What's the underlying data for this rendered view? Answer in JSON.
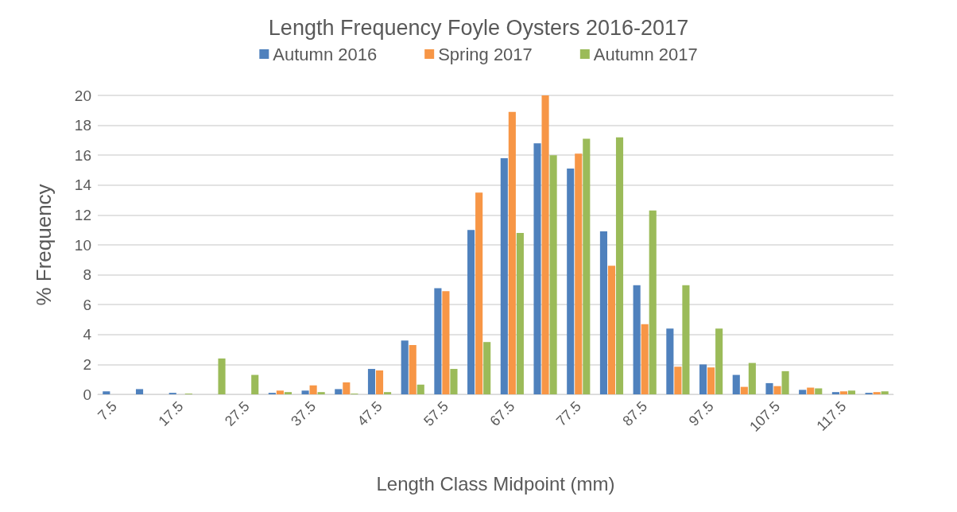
{
  "chart_data": {
    "type": "bar",
    "title": "Length Frequency Foyle Oysters 2016-2017",
    "xlabel": "Length Class Midpoint (mm)",
    "ylabel": "% Frequency",
    "categories": [
      "7.5",
      null,
      "17.5",
      null,
      "27.5",
      null,
      "37.5",
      null,
      "47.5",
      null,
      "57.5",
      null,
      "67.5",
      null,
      "77.5",
      null,
      "87.5",
      null,
      "97.5",
      null,
      "107.5",
      null,
      "117.5",
      null
    ],
    "series": [
      {
        "name": "Autumn 2016",
        "color": "#4f81bd",
        "values": [
          0.2,
          0.35,
          0.1,
          0,
          0,
          0.1,
          0.25,
          0.35,
          1.7,
          3.6,
          7.1,
          11.0,
          15.8,
          16.8,
          15.1,
          10.9,
          7.3,
          4.4,
          2.0,
          1.3,
          0.75,
          0.3,
          0.15,
          0.1
        ]
      },
      {
        "name": "Spring 2017",
        "color": "#f79646",
        "values": [
          0,
          0,
          0,
          0,
          0,
          0.25,
          0.6,
          0.8,
          1.6,
          3.3,
          6.9,
          13.5,
          18.9,
          20.0,
          16.1,
          8.6,
          4.7,
          1.85,
          1.8,
          0.5,
          0.55,
          0.45,
          0.2,
          0.15
        ]
      },
      {
        "name": "Autumn 2017",
        "color": "#9bbb59",
        "values": [
          0,
          0,
          0.05,
          2.4,
          1.3,
          0.15,
          0.15,
          0.05,
          0.15,
          0.65,
          1.7,
          3.5,
          10.8,
          16.0,
          17.1,
          17.2,
          12.3,
          7.3,
          4.4,
          2.1,
          1.55,
          0.4,
          0.25,
          0.2
        ]
      }
    ],
    "ylim": [
      0,
      20
    ],
    "yticks": [
      0,
      2,
      4,
      6,
      8,
      10,
      12,
      14,
      16,
      18,
      20
    ],
    "grid": "y",
    "legend": "top"
  }
}
